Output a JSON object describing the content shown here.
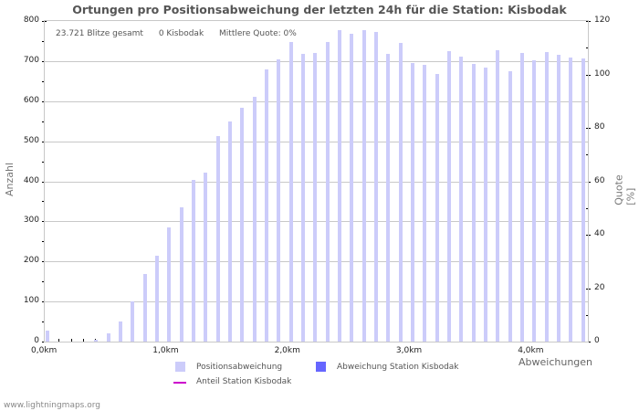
{
  "chart_data": {
    "type": "bar",
    "title": "Ortungen pro Positionsabweichung der letzten 24h für die Station: Kisbodak",
    "xlabel": "Abweichungen",
    "ylabel": "Anzahl",
    "ylabel_right": "Quote [%]",
    "ylim": [
      0,
      800
    ],
    "ylim_right": [
      0,
      120
    ],
    "yticks": [
      0,
      100,
      200,
      300,
      400,
      500,
      600,
      700,
      800
    ],
    "yticks_right": [
      0,
      20,
      40,
      60,
      80,
      100,
      120
    ],
    "xtick_labels": [
      "0,0km",
      "1,0km",
      "2,0km",
      "3,0km",
      "4,0km"
    ],
    "grid": true,
    "legend_position": "bottom",
    "categories": [
      "0,0",
      "0,1",
      "0,2",
      "0,3",
      "0,4",
      "0,5",
      "0,6",
      "0,7",
      "0,8",
      "0,9",
      "1,0",
      "1,1",
      "1,2",
      "1,3",
      "1,4",
      "1,5",
      "1,6",
      "1,7",
      "1,8",
      "1,9",
      "2,0",
      "2,1",
      "2,2",
      "2,3",
      "2,4",
      "2,5",
      "2,6",
      "2,7",
      "2,8",
      "2,9",
      "3,0",
      "3,1",
      "3,2",
      "3,3",
      "3,4",
      "3,5",
      "3,6",
      "3,7",
      "3,8",
      "3,9",
      "4,0",
      "4,1",
      "4,2",
      "4,3",
      "4,4"
    ],
    "series": [
      {
        "name": "Positionsabweichung",
        "color": "#ccccfa",
        "values": [
          27,
          0,
          0,
          0,
          5,
          20,
          50,
          100,
          168,
          215,
          286,
          336,
          404,
          422,
          512,
          549,
          583,
          611,
          680,
          705,
          748,
          718,
          720,
          748,
          777,
          768,
          777,
          772,
          718,
          745,
          695,
          691,
          668,
          725,
          711,
          693,
          684,
          727,
          675,
          720,
          702,
          722,
          716,
          709,
          707
        ]
      },
      {
        "name": "Abweichung Station Kisbodak",
        "color": "#6666ff",
        "values": [
          0,
          0,
          0,
          0,
          0,
          0,
          0,
          0,
          0,
          0,
          0,
          0,
          0,
          0,
          0,
          0,
          0,
          0,
          0,
          0,
          0,
          0,
          0,
          0,
          0,
          0,
          0,
          0,
          0,
          0,
          0,
          0,
          0,
          0,
          0,
          0,
          0,
          0,
          0,
          0,
          0,
          0,
          0,
          0,
          0
        ]
      },
      {
        "name": "Anteil Station Kisbodak",
        "color": "#cc00cc",
        "type": "line",
        "values": []
      }
    ]
  },
  "stats": {
    "total": "23.721 Blitze gesamt",
    "station": "0 Kisbodak",
    "quote": "Mittlere Quote: 0%"
  },
  "legend": [
    {
      "label": "Positionsabweichung",
      "color": "#ccccfa"
    },
    {
      "label": "Abweichung Station Kisbodak",
      "color": "#6666ff"
    },
    {
      "label": "Anteil Station Kisbodak",
      "color": "#cc00cc"
    }
  ],
  "footer": "www.lightningmaps.org"
}
